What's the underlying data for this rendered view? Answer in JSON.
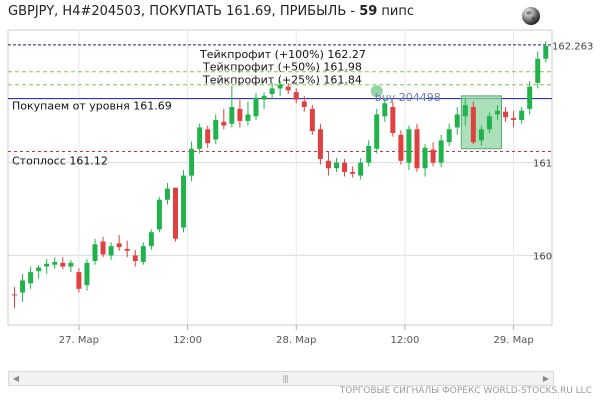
{
  "header": {
    "text": "GBPJPY, H4#204503, ПОКУПАТЬ 161.69, ПРИБЫЛЬ - ",
    "pips": "59",
    "pips_unit": " пипс"
  },
  "icons": {
    "globe": "globe-icon",
    "scroll_left": "triangle-left-icon",
    "scroll_right": "triangle-right-icon",
    "scroll_grip": "grip-icon"
  },
  "footer": {
    "text": "ТОРГОВЫЕ СИГНАЛЫ ФОРЕКС WORLD-STOCKS.RU LLC"
  },
  "colors": {
    "bull": "#22b24c",
    "bear": "#e04040",
    "entry_line": "#1a1aa0",
    "stop_line": "#d03030",
    "tp_line": "#7ec84a",
    "tp100_line": "#1a1a80",
    "box_fill": "#8fd6a4"
  },
  "chart_data": {
    "type": "candlestick",
    "ylim": [
      159.25,
      162.43
    ],
    "x_ticks": [
      {
        "label": "27. Мар",
        "index": 8
      },
      {
        "label": "12:00",
        "index": 21.5
      },
      {
        "label": "28. Мар",
        "index": 35
      },
      {
        "label": "12:00",
        "index": 48.5
      },
      {
        "label": "29. Мар",
        "index": 62
      }
    ],
    "y_ticks": [
      {
        "label": "160",
        "value": 160.0
      },
      {
        "label": "161",
        "value": 161.0
      },
      {
        "label": "162.263",
        "value": 162.263
      }
    ],
    "levels": [
      {
        "label": "Тейкпрофит (+100%) 162.27",
        "value": 162.27,
        "style": "tp100"
      },
      {
        "label": "Тейкпрофит (+50%) 161.98",
        "value": 161.98,
        "style": "tp"
      },
      {
        "label": "Тейкпрофит (+25%) 161.84",
        "value": 161.84,
        "style": "tp"
      },
      {
        "label": "Покупаем от уровня 161.69",
        "value": 161.69,
        "style": "entry"
      },
      {
        "label": "Стоплосс 161.12",
        "value": 161.12,
        "style": "stop"
      }
    ],
    "signal_label": "buy 204498",
    "signal_index": 45,
    "signal_value": 161.77,
    "box": {
      "from": 56,
      "to": 60,
      "high": 161.72,
      "low": 161.15
    },
    "candles": [
      [
        159.58,
        159.66,
        159.43,
        159.57
      ],
      [
        159.6,
        159.8,
        159.5,
        159.73
      ],
      [
        159.7,
        159.88,
        159.64,
        159.82
      ],
      [
        159.83,
        159.9,
        159.75,
        159.87
      ],
      [
        159.88,
        159.96,
        159.8,
        159.91
      ],
      [
        159.9,
        159.98,
        159.86,
        159.93
      ],
      [
        159.92,
        159.98,
        159.85,
        159.88
      ],
      [
        159.88,
        159.95,
        159.82,
        159.92
      ],
      [
        159.82,
        159.86,
        159.6,
        159.64
      ],
      [
        159.68,
        159.96,
        159.62,
        159.92
      ],
      [
        159.94,
        160.18,
        159.9,
        160.12
      ],
      [
        160.15,
        160.2,
        159.98,
        160.01
      ],
      [
        160.0,
        160.14,
        159.95,
        160.1
      ],
      [
        160.13,
        160.22,
        160.05,
        160.09
      ],
      [
        160.07,
        160.16,
        159.98,
        160.05
      ],
      [
        160.0,
        160.06,
        159.88,
        159.94
      ],
      [
        159.93,
        160.14,
        159.9,
        160.1
      ],
      [
        160.1,
        160.28,
        160.06,
        160.25
      ],
      [
        160.28,
        160.63,
        160.25,
        160.6
      ],
      [
        160.6,
        160.78,
        160.55,
        160.72
      ],
      [
        160.73,
        160.73,
        160.15,
        160.18
      ],
      [
        160.3,
        160.92,
        160.25,
        160.86
      ],
      [
        160.86,
        161.23,
        160.8,
        161.15
      ],
      [
        161.15,
        161.42,
        161.1,
        161.38
      ],
      [
        161.36,
        161.4,
        161.16,
        161.21
      ],
      [
        161.25,
        161.52,
        161.2,
        161.46
      ],
      [
        161.44,
        161.58,
        161.36,
        161.4
      ],
      [
        161.42,
        161.83,
        161.38,
        161.6
      ],
      [
        161.58,
        161.68,
        161.38,
        161.45
      ],
      [
        161.45,
        161.66,
        161.4,
        161.52
      ],
      [
        161.5,
        161.75,
        161.46,
        161.7
      ],
      [
        161.68,
        161.76,
        161.58,
        161.72
      ],
      [
        161.74,
        161.86,
        161.68,
        161.8
      ],
      [
        161.8,
        161.88,
        161.72,
        161.84
      ],
      [
        161.82,
        161.86,
        161.74,
        161.78
      ],
      [
        161.76,
        161.8,
        161.64,
        161.68
      ],
      [
        161.66,
        161.72,
        161.55,
        161.6
      ],
      [
        161.58,
        161.62,
        161.3,
        161.34
      ],
      [
        161.36,
        161.42,
        160.98,
        161.04
      ],
      [
        161.02,
        161.12,
        160.86,
        160.94
      ],
      [
        160.94,
        161.05,
        160.9,
        161.0
      ],
      [
        161.0,
        161.04,
        160.85,
        160.9
      ],
      [
        160.9,
        160.96,
        160.84,
        160.88
      ],
      [
        160.86,
        161.05,
        160.82,
        161.0
      ],
      [
        161.0,
        161.24,
        160.96,
        161.18
      ],
      [
        161.15,
        161.58,
        161.1,
        161.52
      ],
      [
        161.5,
        161.7,
        161.44,
        161.64
      ],
      [
        161.6,
        161.66,
        161.28,
        161.32
      ],
      [
        161.3,
        161.35,
        160.98,
        161.02
      ],
      [
        161.0,
        161.4,
        160.92,
        161.36
      ],
      [
        161.36,
        161.42,
        160.9,
        160.94
      ],
      [
        160.94,
        161.2,
        160.85,
        161.16
      ],
      [
        161.14,
        161.22,
        160.96,
        161.0
      ],
      [
        161.0,
        161.3,
        160.95,
        161.24
      ],
      [
        161.22,
        161.42,
        161.18,
        161.36
      ],
      [
        161.38,
        161.6,
        161.3,
        161.52
      ],
      [
        161.5,
        161.7,
        161.4,
        161.62
      ],
      [
        161.6,
        161.66,
        161.2,
        161.22
      ],
      [
        161.24,
        161.4,
        161.18,
        161.36
      ],
      [
        161.36,
        161.54,
        161.32,
        161.5
      ],
      [
        161.52,
        161.62,
        161.46,
        161.56
      ],
      [
        161.55,
        161.6,
        161.44,
        161.49
      ],
      [
        161.48,
        161.56,
        161.38,
        161.46
      ],
      [
        161.46,
        161.6,
        161.42,
        161.56
      ],
      [
        161.58,
        161.88,
        161.52,
        161.82
      ],
      [
        161.86,
        162.2,
        161.8,
        162.12
      ],
      [
        162.12,
        162.31,
        162.08,
        162.26
      ]
    ]
  }
}
